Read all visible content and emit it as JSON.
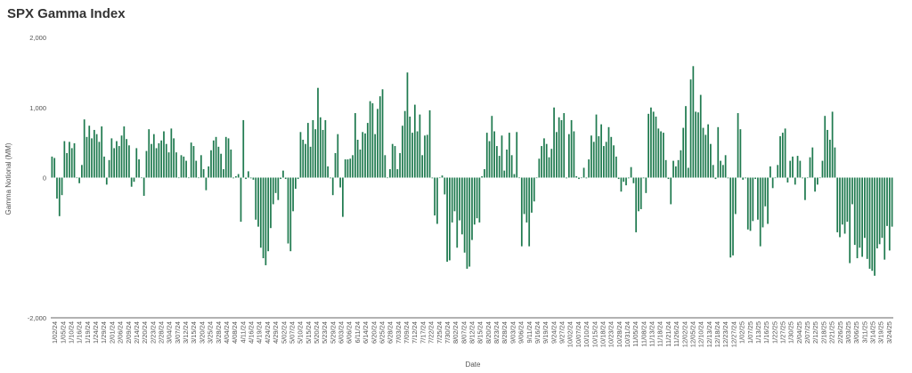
{
  "chart_data": {
    "type": "bar",
    "title": "SPX Gamma Index",
    "xlabel": "Date",
    "ylabel": "Gamma Notional (MM)",
    "ylim": [
      -2000,
      2000
    ],
    "yticks": [
      -2000,
      0,
      1000,
      2000
    ],
    "ytick_labels": [
      "-2,000",
      "0",
      "1,000",
      "2,000"
    ],
    "bar_color": "#1f7a4f",
    "grid": false,
    "legend": "none",
    "xtick_labels": [
      "1/02/24",
      "1/05/24",
      "1/10/24",
      "1/16/24",
      "1/19/24",
      "1/24/24",
      "1/29/24",
      "2/01/24",
      "2/06/24",
      "2/09/24",
      "2/14/24",
      "2/20/24",
      "2/23/24",
      "2/28/24",
      "3/04/24",
      "3/07/24",
      "3/12/24",
      "3/15/24",
      "3/20/24",
      "3/25/24",
      "3/28/24",
      "4/04/24",
      "4/08/24",
      "4/11/24",
      "4/16/24",
      "4/19/24",
      "4/24/24",
      "4/29/24",
      "5/02/24",
      "5/07/24",
      "5/10/24",
      "5/15/24",
      "5/20/24",
      "5/23/24",
      "5/29/24",
      "6/03/24",
      "6/06/24",
      "6/11/24",
      "6/14/24",
      "6/20/24",
      "6/25/24",
      "6/28/24",
      "7/03/24",
      "7/09/24",
      "7/12/24",
      "7/17/24",
      "7/22/24",
      "7/25/24",
      "7/30/24",
      "8/02/24",
      "8/07/24",
      "8/12/24",
      "8/15/24",
      "8/20/24",
      "8/23/24",
      "8/28/24",
      "9/03/24",
      "9/06/24",
      "9/11/24",
      "9/16/24",
      "9/19/24",
      "9/24/24",
      "9/27/24",
      "10/02/24",
      "10/07/24",
      "10/10/24",
      "10/15/24",
      "10/18/24",
      "10/23/24",
      "10/28/24",
      "10/31/24",
      "11/05/24",
      "11/08/24",
      "11/13/24",
      "11/18/24",
      "11/21/24",
      "11/26/24",
      "12/02/24",
      "12/05/24",
      "12/10/24",
      "12/13/24",
      "12/18/24",
      "12/23/24",
      "12/27/24",
      "1/02/25",
      "1/07/25",
      "1/13/25",
      "1/16/25",
      "1/22/25",
      "1/27/25",
      "1/30/25",
      "2/04/25",
      "2/07/25",
      "2/12/25",
      "2/18/25",
      "2/21/25",
      "2/26/25",
      "3/03/25",
      "3/06/25",
      "3/11/25",
      "3/14/25",
      "3/19/25",
      "3/24/25"
    ],
    "values": [
      300,
      280,
      -300,
      -550,
      -250,
      520,
      350,
      510,
      420,
      490,
      0,
      -80,
      180,
      830,
      580,
      740,
      560,
      680,
      620,
      510,
      730,
      300,
      -100,
      250,
      560,
      420,
      520,
      450,
      600,
      730,
      550,
      460,
      -130,
      -60,
      420,
      260,
      0,
      -260,
      380,
      690,
      480,
      620,
      420,
      490,
      530,
      660,
      480,
      360,
      700,
      560,
      360,
      0,
      320,
      300,
      240,
      0,
      500,
      450,
      240,
      0,
      320,
      120,
      -180,
      160,
      390,
      530,
      580,
      440,
      340,
      120,
      580,
      560,
      400,
      -10,
      20,
      50,
      -630,
      820,
      -20,
      90,
      -10,
      -30,
      -600,
      -700,
      -1000,
      -1150,
      -1250,
      -1050,
      -720,
      -380,
      -220,
      -320,
      -20,
      100,
      -20,
      -940,
      -1050,
      -480,
      -160,
      -20,
      650,
      540,
      480,
      780,
      440,
      820,
      690,
      1280,
      860,
      680,
      820,
      160,
      -10,
      -250,
      350,
      620,
      -140,
      -560,
      260,
      260,
      270,
      320,
      920,
      540,
      400,
      650,
      630,
      780,
      1090,
      1060,
      620,
      980,
      1160,
      1260,
      320,
      0,
      120,
      480,
      450,
      120,
      350,
      740,
      950,
      1500,
      870,
      640,
      1040,
      660,
      900,
      320,
      600,
      610,
      960,
      -10,
      -540,
      -660,
      0,
      30,
      -240,
      -1200,
      -1180,
      -640,
      -480,
      -1000,
      -610,
      -810,
      -1070,
      -1300,
      -1270,
      -890,
      -670,
      -580,
      -640,
      20,
      120,
      640,
      520,
      880,
      660,
      450,
      310,
      600,
      100,
      400,
      640,
      320,
      50,
      650,
      0,
      -980,
      -520,
      -640,
      -980,
      -500,
      -340,
      0,
      270,
      450,
      560,
      480,
      290,
      410,
      1000,
      650,
      860,
      820,
      920,
      -10,
      620,
      820,
      660,
      20,
      -20,
      0,
      140,
      -10,
      260,
      600,
      510,
      900,
      590,
      760,
      450,
      510,
      720,
      580,
      460,
      300,
      -20,
      -200,
      -60,
      -110,
      -10,
      150,
      -80,
      -780,
      -480,
      -450,
      -10,
      -220,
      910,
      1000,
      940,
      870,
      700,
      660,
      640,
      250,
      -20,
      -380,
      240,
      160,
      250,
      390,
      710,
      1020,
      140,
      1400,
      1590,
      940,
      930,
      1180,
      710,
      610,
      760,
      480,
      180,
      -20,
      720,
      240,
      180,
      320,
      -10,
      -1140,
      -1110,
      -520,
      920,
      690,
      -30,
      -10,
      -740,
      -760,
      -620,
      -20,
      -600,
      -980,
      -710,
      -410,
      -660,
      160,
      -150,
      0,
      180,
      590,
      640,
      700,
      -70,
      240,
      300,
      -100,
      310,
      240,
      -10,
      -320,
      0,
      290,
      430,
      -200,
      -100,
      0,
      240,
      880,
      680,
      540,
      940,
      430,
      -780,
      -850,
      -670,
      -800,
      -630,
      -1220,
      -380,
      -960,
      -1150,
      -1000,
      -1130,
      -860,
      -1160,
      -1300,
      -1330,
      -1400,
      -1010,
      -950,
      -860,
      -1170,
      -690,
      -1040,
      -700
    ]
  }
}
